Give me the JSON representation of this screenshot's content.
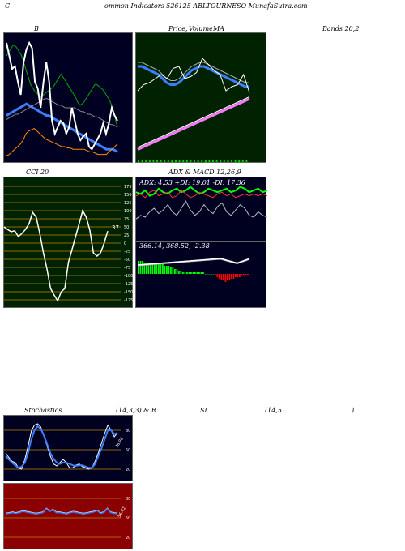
{
  "header": {
    "left": "C",
    "title": "ommon  Indicators 526125 ABLTOURNESO MunafaSutra.com"
  },
  "labels": {
    "bb": "B",
    "price": "Price,",
    "volume": "Volume",
    "ma": "MA",
    "bands": "Bands 20,2",
    "cci": "CCI 20",
    "adx_macd": "ADX  & MACD 12,26,9",
    "stoch": "Stochastics",
    "stoch_params": "(14,3,3) & R",
    "rsi_si": "SI",
    "rsi_params": "(14,5",
    "rsi_close": ")"
  },
  "adx_text": "ADX: 4.53 +DI: 19.01 -DI: 17.36",
  "macd_text": "366.14,  368.52,  -2.38",
  "cci_value": "37",
  "stoch_value": "76.82",
  "rsi_value": "56.42",
  "watermark": "MunafaSutra.com",
  "colors": {
    "bb_bg": "#000022",
    "green_bg": "#002200",
    "dark_bg": "#000020",
    "rsi_bg": "#8b0000",
    "blue": "#3a7fff"
  },
  "chart_data": [
    {
      "type": "line",
      "name": "bollinger-bands",
      "series": [
        {
          "values": [
            80,
            82,
            84,
            86,
            88,
            88,
            87,
            85,
            83,
            81,
            78,
            74,
            70,
            66,
            62,
            58,
            56,
            54,
            52,
            51,
            50,
            49,
            49,
            50,
            51,
            52,
            53,
            54,
            55,
            56,
            58,
            60,
            62,
            64,
            66,
            64,
            62,
            60,
            58,
            56,
            54,
            52,
            50,
            48,
            45,
            43,
            42,
            43,
            44,
            46,
            48,
            50,
            52,
            54,
            56,
            58,
            58,
            57,
            56,
            55,
            54,
            52,
            50,
            48,
            46,
            43,
            40,
            35,
            30,
            25
          ]
        },
        {
          "values": [
            34,
            35,
            36,
            37,
            38,
            39,
            40,
            41,
            42,
            43,
            42,
            41,
            40,
            39,
            38,
            37,
            36,
            35,
            34,
            34,
            33,
            32,
            31,
            30,
            29,
            28,
            27,
            26,
            25,
            24,
            23,
            22,
            21,
            20,
            19,
            18,
            17,
            16,
            15,
            14,
            13,
            12,
            11,
            10,
            9,
            8,
            8,
            8,
            8,
            7,
            6
          ]
        },
        {
          "values": [
            31,
            32,
            33,
            34,
            35,
            35,
            36,
            37,
            38,
            39,
            40,
            41,
            42,
            43,
            44,
            45,
            46,
            47,
            47,
            46,
            45,
            44,
            43,
            42,
            42,
            41,
            40,
            40,
            40,
            40,
            40,
            39,
            38,
            37,
            37,
            36,
            35,
            35,
            34,
            33,
            33,
            32,
            31,
            30,
            29,
            28,
            27,
            27,
            26,
            25
          ]
        },
        {
          "values": [
            90,
            80,
            70,
            72,
            60,
            50,
            75,
            85,
            90,
            86,
            60,
            55,
            40,
            60,
            75,
            60,
            30,
            20,
            25,
            30,
            28,
            20,
            25,
            40,
            30,
            20,
            15,
            18,
            20,
            10,
            8,
            12,
            16,
            20,
            28,
            20,
            28,
            40,
            34,
            30
          ]
        },
        {
          "values": [
            3,
            4,
            6,
            8,
            10,
            12,
            15,
            20,
            22,
            23,
            24,
            22,
            20,
            18,
            16,
            15,
            14,
            13,
            12,
            11,
            10,
            10,
            9,
            9,
            8,
            8,
            8,
            8,
            8,
            7,
            6,
            6,
            5,
            4,
            4,
            4,
            4,
            6,
            8,
            10,
            12
          ]
        }
      ]
    },
    {
      "type": "line",
      "name": "price-ma",
      "series": [
        {
          "values": [
            46,
            46,
            45,
            44,
            43,
            42,
            40,
            38,
            37,
            37,
            38,
            40,
            42,
            44,
            45,
            46,
            46,
            45,
            44,
            43,
            42,
            41,
            40,
            39,
            38,
            37,
            36,
            36
          ]
        },
        {
          "values": [
            5,
            6,
            7,
            8,
            9,
            10,
            11,
            12,
            13,
            14,
            15,
            16,
            17,
            18,
            19,
            20,
            21,
            22,
            23,
            24,
            25,
            26,
            27,
            28,
            29,
            30
          ]
        },
        {
          "values": [
            34,
            37,
            38,
            40,
            42,
            40,
            45,
            46,
            40,
            41,
            43,
            50,
            47,
            44,
            42,
            34,
            36,
            37,
            42,
            33
          ]
        }
      ]
    },
    {
      "type": "line",
      "name": "cci",
      "ylim": [
        -200,
        200
      ],
      "series": [
        {
          "values": [
            50,
            42,
            35,
            38,
            20,
            30,
            42,
            60,
            95,
            80,
            30,
            -30,
            -80,
            -140,
            -160,
            -178,
            -150,
            -140,
            -60,
            -20,
            20,
            60,
            100,
            80,
            40,
            -30,
            -40,
            -30,
            0,
            37
          ]
        }
      ],
      "ticks": [
        "175",
        "150",
        "125",
        "100",
        "75",
        "50",
        "25",
        "0",
        "-25",
        "-50",
        "-75",
        "-100",
        "-125",
        "-150",
        "-175"
      ]
    },
    {
      "type": "line",
      "name": "adx",
      "series": [
        {
          "values": [
            19,
            18,
            20,
            17,
            18,
            21,
            19,
            18,
            20,
            21,
            19,
            20,
            22,
            20,
            18,
            19,
            21,
            20,
            19,
            20,
            21,
            19,
            20,
            22,
            21,
            19,
            20,
            21,
            19,
            20
          ]
        },
        {
          "values": [
            17,
            18,
            16,
            19,
            20,
            17,
            18,
            19,
            16,
            17,
            20,
            18,
            16,
            17,
            19,
            18,
            17,
            16,
            18,
            19,
            17,
            18,
            16,
            17,
            18,
            17,
            18,
            17,
            18,
            17
          ]
        },
        {
          "values": [
            4,
            6,
            5,
            8,
            10,
            7,
            9,
            12,
            8,
            6,
            10,
            14,
            9,
            6,
            8,
            12,
            9,
            7,
            11,
            13,
            8,
            6,
            9,
            12,
            10,
            6,
            5,
            8,
            6,
            5
          ]
        }
      ]
    },
    {
      "type": "bar",
      "name": "macd",
      "series": [
        {
          "values": [
            8,
            8,
            8,
            7,
            7,
            7,
            7,
            7,
            7,
            6,
            6,
            6,
            6,
            5,
            5,
            5,
            4,
            4,
            3,
            3,
            2,
            2,
            1,
            1,
            1,
            1,
            1,
            1,
            1,
            1,
            1,
            1,
            1,
            0,
            0,
            0,
            0,
            0,
            -1,
            -2,
            -3,
            -4,
            -4,
            -5,
            -4,
            -4,
            -3,
            -3,
            -2,
            -2,
            -2,
            -1,
            -1,
            -1,
            -1
          ]
        }
      ]
    },
    {
      "type": "line",
      "name": "stochastics",
      "ylim": [
        0,
        100
      ],
      "series": [
        {
          "values": [
            45,
            38,
            32,
            30,
            22,
            20,
            35,
            55,
            78,
            88,
            90,
            85,
            70,
            55,
            40,
            28,
            25,
            30,
            35,
            30,
            22,
            22,
            26,
            28,
            24,
            22,
            20,
            22,
            32,
            45,
            60,
            75,
            88,
            80,
            70,
            76
          ]
        },
        {
          "values": [
            40,
            35,
            30,
            26,
            22,
            24,
            30,
            45,
            65,
            80,
            86,
            82,
            72,
            58,
            45,
            36,
            30,
            28,
            30,
            30,
            28,
            26,
            25,
            26,
            26,
            24,
            22,
            22,
            28,
            40,
            52,
            66,
            80,
            80,
            74,
            76
          ]
        }
      ],
      "ticks": [
        "80",
        "50",
        "20"
      ]
    },
    {
      "type": "line",
      "name": "rsi",
      "ylim": [
        0,
        100
      ],
      "series": [
        {
          "values": [
            56,
            57,
            58,
            57,
            58,
            60,
            59,
            58,
            57,
            56,
            57,
            58,
            64,
            60,
            62,
            58,
            58,
            57,
            56,
            58,
            59,
            58,
            57,
            56,
            57,
            58,
            59,
            61,
            57,
            58,
            64,
            58,
            57,
            56
          ]
        }
      ],
      "ticks": [
        "80",
        "50",
        "20"
      ]
    }
  ]
}
